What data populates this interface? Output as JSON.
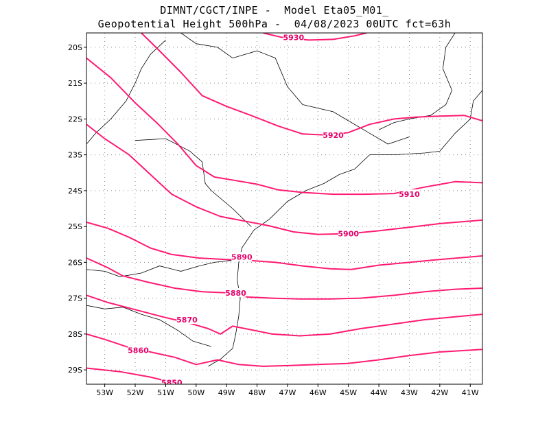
{
  "title": {
    "line1": "DIMNT/CGCT/INPE -  Model Eta05_M01_",
    "line2": "Geopotential Height 500hPa -  04/08/2023 00UTC fct=63h"
  },
  "colors": {
    "contour": "#ff1a73",
    "contour_label": "#e6006a",
    "coastline": "#000000",
    "grid": "#888888",
    "frame": "#000000"
  },
  "map": {
    "lon_range": [
      -53.6,
      -40.6
    ],
    "lat_range": [
      -29.4,
      -19.6
    ],
    "lat_ticks": [
      {
        "value": -20,
        "label": "20S"
      },
      {
        "value": -21,
        "label": "21S"
      },
      {
        "value": -22,
        "label": "22S"
      },
      {
        "value": -23,
        "label": "23S"
      },
      {
        "value": -24,
        "label": "24S"
      },
      {
        "value": -25,
        "label": "25S"
      },
      {
        "value": -26,
        "label": "26S"
      },
      {
        "value": -27,
        "label": "27S"
      },
      {
        "value": -28,
        "label": "28S"
      },
      {
        "value": -29,
        "label": "29S"
      }
    ],
    "lon_ticks": [
      {
        "value": -53,
        "label": "53W"
      },
      {
        "value": -52,
        "label": "52W"
      },
      {
        "value": -51,
        "label": "51W"
      },
      {
        "value": -50,
        "label": "50W"
      },
      {
        "value": -49,
        "label": "49W"
      },
      {
        "value": -48,
        "label": "48W"
      },
      {
        "value": -47,
        "label": "47W"
      },
      {
        "value": -46,
        "label": "46W"
      },
      {
        "value": -45,
        "label": "45W"
      },
      {
        "value": -44,
        "label": "44W"
      },
      {
        "value": -43,
        "label": "43W"
      },
      {
        "value": -42,
        "label": "42W"
      },
      {
        "value": -41,
        "label": "41W"
      }
    ],
    "grid": true
  },
  "contours": [
    {
      "value": 5850,
      "label": "5850",
      "label_at": [
        -50.8,
        -29.35
      ],
      "points": [
        [
          -53.6,
          -28.95
        ],
        [
          -52.5,
          -29.05
        ],
        [
          -51.5,
          -29.2
        ],
        [
          -50.8,
          -29.35
        ]
      ]
    },
    {
      "value": 5860,
      "label": "5860",
      "label_at": [
        -51.9,
        -28.45
      ],
      "points": [
        [
          -53.6,
          -28.0
        ],
        [
          -53.0,
          -28.15
        ],
        [
          -52.3,
          -28.35
        ],
        [
          -51.5,
          -28.5
        ],
        [
          -50.7,
          -28.65
        ],
        [
          -50.0,
          -28.85
        ],
        [
          -49.3,
          -28.72
        ],
        [
          -48.6,
          -28.85
        ],
        [
          -47.8,
          -28.9
        ],
        [
          -46.9,
          -28.88
        ],
        [
          -46.0,
          -28.85
        ],
        [
          -45.0,
          -28.82
        ],
        [
          -44.0,
          -28.72
        ],
        [
          -43.0,
          -28.6
        ],
        [
          -42.0,
          -28.5
        ],
        [
          -41.0,
          -28.45
        ],
        [
          -40.6,
          -28.43
        ]
      ]
    },
    {
      "value": 5870,
      "label": "5870",
      "label_at": [
        -50.3,
        -27.6
      ],
      "points": [
        [
          -53.6,
          -26.92
        ],
        [
          -52.9,
          -27.12
        ],
        [
          -52.0,
          -27.32
        ],
        [
          -51.1,
          -27.52
        ],
        [
          -50.2,
          -27.7
        ],
        [
          -49.6,
          -27.85
        ],
        [
          -49.2,
          -28.0
        ],
        [
          -48.8,
          -27.78
        ],
        [
          -48.2,
          -27.88
        ],
        [
          -47.5,
          -28.0
        ],
        [
          -46.6,
          -28.05
        ],
        [
          -45.6,
          -28.0
        ],
        [
          -44.6,
          -27.85
        ],
        [
          -43.5,
          -27.72
        ],
        [
          -42.5,
          -27.6
        ],
        [
          -41.5,
          -27.52
        ],
        [
          -40.6,
          -27.45
        ]
      ]
    },
    {
      "value": 5880,
      "label": "5880",
      "label_at": [
        -48.7,
        -26.85
      ],
      "points": [
        [
          -53.6,
          -25.88
        ],
        [
          -52.9,
          -26.15
        ],
        [
          -52.4,
          -26.38
        ],
        [
          -51.6,
          -26.55
        ],
        [
          -50.7,
          -26.72
        ],
        [
          -49.8,
          -26.82
        ],
        [
          -49.0,
          -26.85
        ],
        [
          -48.3,
          -26.97
        ],
        [
          -47.5,
          -27.0
        ],
        [
          -46.6,
          -27.02
        ],
        [
          -45.6,
          -27.02
        ],
        [
          -44.6,
          -27.0
        ],
        [
          -43.5,
          -26.92
        ],
        [
          -42.5,
          -26.82
        ],
        [
          -41.5,
          -26.75
        ],
        [
          -40.6,
          -26.72
        ]
      ]
    },
    {
      "value": 5890,
      "label": "5890",
      "label_at": [
        -48.5,
        -25.85
      ],
      "points": [
        [
          -53.6,
          -24.88
        ],
        [
          -52.9,
          -25.05
        ],
        [
          -52.2,
          -25.3
        ],
        [
          -51.5,
          -25.6
        ],
        [
          -50.8,
          -25.78
        ],
        [
          -49.9,
          -25.88
        ],
        [
          -49.0,
          -25.92
        ],
        [
          -48.2,
          -25.95
        ],
        [
          -47.4,
          -26.0
        ],
        [
          -46.5,
          -26.1
        ],
        [
          -45.6,
          -26.18
        ],
        [
          -44.9,
          -26.2
        ],
        [
          -44.0,
          -26.08
        ],
        [
          -43.0,
          -26.0
        ],
        [
          -42.0,
          -25.92
        ],
        [
          -41.0,
          -25.85
        ],
        [
          -40.6,
          -25.82
        ]
      ]
    },
    {
      "value": 5900,
      "label": "5900",
      "label_at": [
        -45.0,
        -25.2
      ],
      "points": [
        [
          -53.6,
          -22.15
        ],
        [
          -53.0,
          -22.55
        ],
        [
          -52.2,
          -23.0
        ],
        [
          -51.5,
          -23.55
        ],
        [
          -50.8,
          -24.1
        ],
        [
          -50.0,
          -24.45
        ],
        [
          -49.2,
          -24.72
        ],
        [
          -48.4,
          -24.85
        ],
        [
          -47.6,
          -24.98
        ],
        [
          -46.8,
          -25.15
        ],
        [
          -46.0,
          -25.22
        ],
        [
          -45.0,
          -25.2
        ],
        [
          -44.0,
          -25.12
        ],
        [
          -43.0,
          -25.02
        ],
        [
          -42.0,
          -24.92
        ],
        [
          -41.0,
          -24.85
        ],
        [
          -40.6,
          -24.82
        ]
      ]
    },
    {
      "value": 5910,
      "label": "5910",
      "label_at": [
        -43.0,
        -24.1
      ],
      "points": [
        [
          -53.6,
          -20.3
        ],
        [
          -52.8,
          -20.85
        ],
        [
          -52.0,
          -21.55
        ],
        [
          -51.3,
          -22.1
        ],
        [
          -50.6,
          -22.7
        ],
        [
          -50.0,
          -23.3
        ],
        [
          -49.4,
          -23.62
        ],
        [
          -48.7,
          -23.72
        ],
        [
          -48.0,
          -23.82
        ],
        [
          -47.3,
          -23.98
        ],
        [
          -46.5,
          -24.05
        ],
        [
          -45.5,
          -24.1
        ],
        [
          -44.5,
          -24.1
        ],
        [
          -43.5,
          -24.08
        ],
        [
          -42.5,
          -23.9
        ],
        [
          -41.5,
          -23.75
        ],
        [
          -40.6,
          -23.78
        ]
      ]
    },
    {
      "value": 5920,
      "label": "5920",
      "label_at": [
        -45.5,
        -22.45
      ],
      "points": [
        [
          -51.8,
          -19.6
        ],
        [
          -51.2,
          -20.1
        ],
        [
          -50.5,
          -20.7
        ],
        [
          -49.8,
          -21.35
        ],
        [
          -49.0,
          -21.65
        ],
        [
          -48.2,
          -21.9
        ],
        [
          -47.3,
          -22.2
        ],
        [
          -46.5,
          -22.42
        ],
        [
          -45.7,
          -22.45
        ],
        [
          -45.0,
          -22.38
        ],
        [
          -44.3,
          -22.15
        ],
        [
          -43.5,
          -22.0
        ],
        [
          -42.8,
          -21.95
        ],
        [
          -42.0,
          -21.92
        ],
        [
          -41.2,
          -21.9
        ],
        [
          -40.6,
          -22.05
        ]
      ]
    },
    {
      "value": 5930,
      "label": "5930",
      "label_at": [
        -46.8,
        -19.72
      ],
      "points": [
        [
          -47.8,
          -19.6
        ],
        [
          -47.2,
          -19.72
        ],
        [
          -46.3,
          -19.8
        ],
        [
          -45.5,
          -19.78
        ],
        [
          -44.8,
          -19.68
        ],
        [
          -44.4,
          -19.6
        ]
      ]
    }
  ],
  "coastlines": [
    [
      [
        -49.6,
        -28.9
      ],
      [
        -49.2,
        -28.7
      ],
      [
        -48.8,
        -28.4
      ],
      [
        -48.7,
        -28.0
      ],
      [
        -48.6,
        -27.5
      ],
      [
        -48.55,
        -27.0
      ],
      [
        -48.65,
        -26.5
      ],
      [
        -48.6,
        -26.0
      ],
      [
        -48.5,
        -25.6
      ],
      [
        -48.1,
        -25.1
      ],
      [
        -47.6,
        -24.8
      ],
      [
        -47.0,
        -24.3
      ],
      [
        -46.4,
        -24.0
      ],
      [
        -45.8,
        -23.8
      ],
      [
        -45.3,
        -23.55
      ],
      [
        -44.8,
        -23.4
      ],
      [
        -44.3,
        -23.0
      ],
      [
        -43.5,
        -23.0
      ],
      [
        -42.5,
        -22.95
      ],
      [
        -42.0,
        -22.9
      ],
      [
        -41.5,
        -22.4
      ],
      [
        -41.0,
        -22.0
      ],
      [
        -40.9,
        -21.5
      ],
      [
        -40.6,
        -21.2
      ]
    ],
    [
      [
        -53.6,
        -27.2
      ],
      [
        -53.0,
        -27.3
      ],
      [
        -52.4,
        -27.25
      ],
      [
        -51.8,
        -27.45
      ],
      [
        -51.2,
        -27.6
      ],
      [
        -50.6,
        -27.9
      ],
      [
        -50.1,
        -28.2
      ],
      [
        -49.7,
        -28.3
      ],
      [
        -49.5,
        -28.35
      ]
    ],
    [
      [
        -53.6,
        -26.2
      ],
      [
        -53.0,
        -26.25
      ],
      [
        -52.5,
        -26.4
      ],
      [
        -51.8,
        -26.3
      ],
      [
        -51.2,
        -26.1
      ],
      [
        -50.5,
        -26.25
      ],
      [
        -49.9,
        -26.1
      ],
      [
        -49.4,
        -26.0
      ],
      [
        -48.9,
        -25.95
      ],
      [
        -48.6,
        -25.95
      ]
    ],
    [
      [
        -51.0,
        -19.8
      ],
      [
        -51.5,
        -20.2
      ],
      [
        -51.8,
        -20.6
      ],
      [
        -52.0,
        -21.0
      ],
      [
        -52.3,
        -21.5
      ],
      [
        -52.8,
        -22.0
      ],
      [
        -53.3,
        -22.4
      ],
      [
        -53.6,
        -22.7
      ]
    ],
    [
      [
        -52.0,
        -22.6
      ],
      [
        -51.0,
        -22.55
      ],
      [
        -50.2,
        -22.9
      ],
      [
        -49.8,
        -23.2
      ],
      [
        -49.7,
        -23.8
      ],
      [
        -49.5,
        -24.0
      ],
      [
        -48.8,
        -24.5
      ],
      [
        -48.2,
        -25.0
      ]
    ],
    [
      [
        -50.5,
        -19.6
      ],
      [
        -50.0,
        -19.9
      ],
      [
        -49.3,
        -20.0
      ],
      [
        -48.8,
        -20.3
      ],
      [
        -48.0,
        -20.1
      ],
      [
        -47.4,
        -20.3
      ],
      [
        -47.0,
        -21.1
      ],
      [
        -46.5,
        -21.6
      ],
      [
        -45.5,
        -21.8
      ],
      [
        -44.9,
        -22.1
      ],
      [
        -44.3,
        -22.4
      ],
      [
        -43.7,
        -22.7
      ],
      [
        -43.0,
        -22.5
      ]
    ],
    [
      [
        -41.5,
        -19.6
      ],
      [
        -41.8,
        -20.0
      ],
      [
        -41.9,
        -20.6
      ],
      [
        -41.6,
        -21.2
      ],
      [
        -41.8,
        -21.6
      ],
      [
        -42.3,
        -21.9
      ],
      [
        -43.0,
        -22.0
      ],
      [
        -43.5,
        -22.1
      ],
      [
        -44.0,
        -22.3
      ]
    ]
  ]
}
